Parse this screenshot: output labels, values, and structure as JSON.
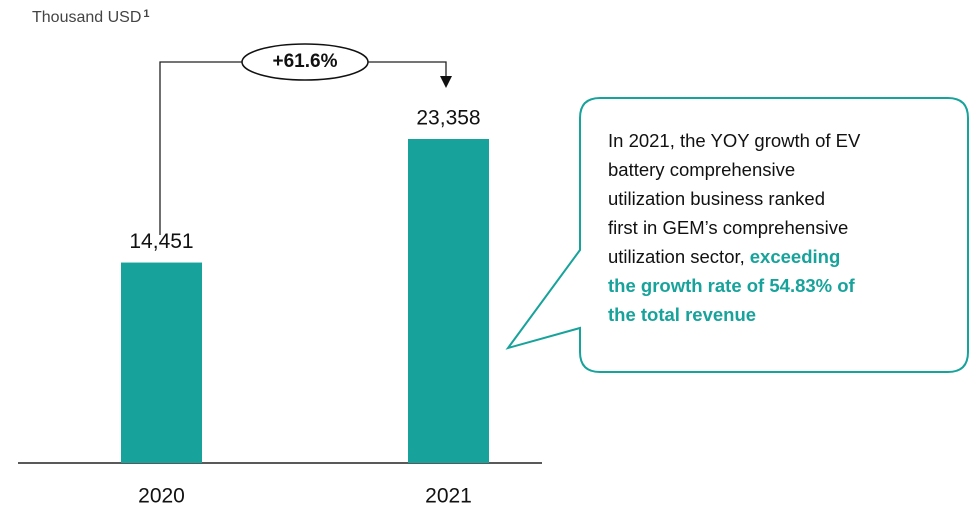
{
  "chart_data": {
    "type": "bar",
    "unit": "Thousand USD",
    "unit_note": "1",
    "categories": [
      "2020",
      "2021"
    ],
    "values": [
      14451,
      23358
    ],
    "value_labels": [
      "14,451",
      "23,358"
    ],
    "color": "#17a39b",
    "annotation": "+61.6%",
    "callout_text": [
      "In 2021, the YOY growth of EV",
      "battery comprehensive",
      "utilization business ranked",
      "first in GEM’s comprehensive",
      "utilization sector,"
    ],
    "callout_highlight": [
      "exceeding",
      "the growth rate of 54.83% of",
      "the total revenue"
    ]
  }
}
